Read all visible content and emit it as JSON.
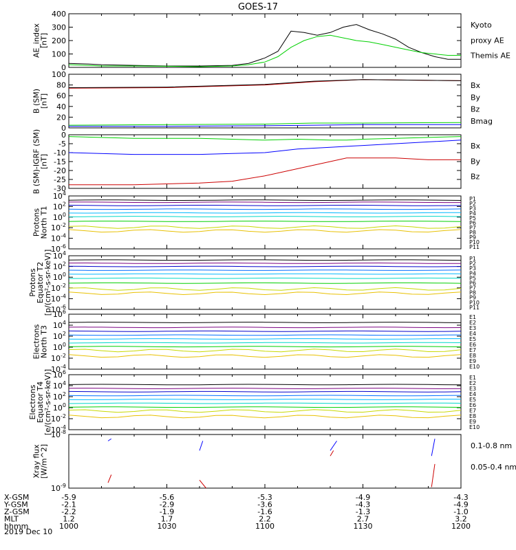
{
  "title": "GOES-17",
  "date_label": "2019 Dec 10",
  "colors": {
    "black": "#000000",
    "green": "#00d000",
    "blue": "#0000ff",
    "red": "#cc0000",
    "ch": [
      "#000000",
      "#7a0080",
      "#0000cc",
      "#0070ff",
      "#00b8ff",
      "#00d8c8",
      "#00d000",
      "#c8d800",
      "#e8c000",
      "#ff8000",
      "#cc0000"
    ]
  },
  "panels": [
    {
      "id": "ae",
      "ylabel": [
        "AE_index",
        "[nT]"
      ],
      "yticks": [
        "400",
        "300",
        "200",
        "100",
        "0"
      ],
      "legend": [
        {
          "text": "Kyoto",
          "color": "#00d000"
        },
        {
          "text": "proxy AE",
          "color": "#00d000"
        },
        {
          "text": "Themis AE",
          "color": "#000000"
        }
      ]
    },
    {
      "id": "bsm",
      "ylabel": [
        "B (SM)",
        "[nT]"
      ],
      "yticks": [
        "100",
        "80",
        "60",
        "40",
        "20",
        "0"
      ],
      "legend": [
        {
          "text": "Bx",
          "color": "#0000ff"
        },
        {
          "text": "By",
          "color": "#00d000"
        },
        {
          "text": "Bz",
          "color": "#cc0000"
        },
        {
          "text": "Bmag",
          "color": "#000000"
        }
      ]
    },
    {
      "id": "bigrf",
      "ylabel": [
        "B (SM)-IGRF (SM)",
        "[nT]"
      ],
      "yticks": [
        "0",
        "-5",
        "-10",
        "-15",
        "-20",
        "-25",
        "-30"
      ],
      "legend": [
        {
          "text": "Bx",
          "color": "#0000ff"
        },
        {
          "text": "By",
          "color": "#00d000"
        },
        {
          "text": "Bz",
          "color": "#cc0000"
        }
      ]
    },
    {
      "id": "pn",
      "ylabel": [
        "Protons",
        "North T1"
      ],
      "yticks": [
        "10^4",
        "10^2",
        "10^0",
        "10^-2",
        "10^-4",
        "10^-6"
      ],
      "legend": [
        "P1",
        "P2",
        "P3",
        "P4",
        "P5",
        "P6",
        "P7",
        "P8",
        "P9",
        "P10",
        "P11"
      ]
    },
    {
      "id": "pe",
      "ylabel": [
        "Protons",
        "Equator T2",
        "[p/(cm²-s-sr-keV)]"
      ],
      "yticks": [
        "10^4",
        "10^2",
        "10^0",
        "10^-2",
        "10^-4",
        "10^-6"
      ],
      "legend": [
        "P1",
        "P2",
        "P3",
        "P4",
        "P5",
        "P6",
        "P7",
        "P8",
        "P9",
        "P10",
        "P11"
      ]
    },
    {
      "id": "en",
      "ylabel": [
        "Electrons",
        "North T3"
      ],
      "yticks": [
        "10^6",
        "10^4",
        "10^2",
        "10^0",
        "10^-2",
        "10^-4"
      ],
      "legend": [
        "E1",
        "E2",
        "E3",
        "E4",
        "E5",
        "E6",
        "E7",
        "E8",
        "E9",
        "E10"
      ]
    },
    {
      "id": "ee",
      "ylabel": [
        "Electrons",
        "Equator T4",
        "[e/(cm²-s-sr-keV)]"
      ],
      "yticks": [
        "10^6",
        "10^4",
        "10^2",
        "10^0",
        "10^-2",
        "10^-4"
      ],
      "legend": [
        "E1",
        "E2",
        "E3",
        "E4",
        "E5",
        "E6",
        "E7",
        "E8",
        "E9",
        "E10"
      ]
    },
    {
      "id": "xray",
      "ylabel": [
        "Xray flux",
        "[W/m^2]"
      ],
      "yticks": [
        "10^-8",
        "10^-9"
      ],
      "legend": [
        {
          "text": "0.1-0.8 nm",
          "color": "#cc0000"
        },
        {
          "text": "0.05-0.4 nm",
          "color": "#0000ff"
        }
      ]
    }
  ],
  "xaxis": {
    "rows": [
      {
        "label": "X-GSM",
        "values": [
          "-5.9",
          "-5.6",
          "-5.3",
          "-4.9",
          "-4.3"
        ]
      },
      {
        "label": "Y-GSM",
        "values": [
          "-2.1",
          "-2.9",
          "-3.6",
          "-4.3",
          "-4.9"
        ]
      },
      {
        "label": "Z-GSM",
        "values": [
          "-2.2",
          "-1.9",
          "-1.6",
          "-1.3",
          "-1.0"
        ]
      },
      {
        "label": "MLT",
        "values": [
          "1.2",
          "1.7",
          "2.2",
          "2.7",
          "3.2"
        ]
      },
      {
        "label": "hhmm",
        "values": [
          "1000",
          "1030",
          "1100",
          "1130",
          "1200"
        ]
      }
    ]
  },
  "chart_data": [
    {
      "type": "line",
      "panel": "ae",
      "x": [
        1000,
        1006,
        1010,
        1020,
        1030,
        1040,
        1050,
        1055,
        1100,
        1104,
        1108,
        1112,
        1116,
        1120,
        1124,
        1128,
        1132,
        1136,
        1140,
        1144,
        1148,
        1152,
        1156,
        1200
      ],
      "series": [
        {
          "name": "Themis AE",
          "values": [
            30,
            25,
            20,
            15,
            10,
            10,
            15,
            30,
            70,
            120,
            270,
            260,
            240,
            260,
            300,
            320,
            280,
            250,
            210,
            150,
            110,
            80,
            60,
            60
          ]
        },
        {
          "name": "Kyoto proxy AE",
          "values": [
            20,
            15,
            10,
            10,
            8,
            5,
            10,
            20,
            40,
            80,
            150,
            200,
            230,
            240,
            220,
            200,
            190,
            170,
            150,
            130,
            110,
            100,
            90,
            90
          ]
        }
      ],
      "ylim": [
        0,
        400
      ]
    },
    {
      "type": "line",
      "panel": "bsm",
      "x": [
        1000,
        1030,
        1100,
        1115,
        1130,
        1200
      ],
      "series": [
        {
          "name": "Bz",
          "values": [
            74,
            75,
            80,
            86,
            90,
            88
          ]
        },
        {
          "name": "Bmag",
          "values": [
            75,
            76,
            81,
            87,
            90,
            88
          ]
        },
        {
          "name": "By",
          "values": [
            5,
            6,
            7,
            9,
            9,
            10
          ]
        },
        {
          "name": "Bx",
          "values": [
            3,
            3,
            4,
            5,
            6,
            6
          ]
        }
      ],
      "ylim": [
        0,
        100
      ]
    },
    {
      "type": "line",
      "panel": "bigrf",
      "x": [
        1000,
        1020,
        1040,
        1050,
        1100,
        1110,
        1120,
        1125,
        1130,
        1140,
        1150,
        1200
      ],
      "series": [
        {
          "name": "By",
          "values": [
            -1,
            -2,
            -2,
            -2.5,
            -3,
            -2.5,
            -3,
            -3,
            -2.5,
            -2,
            -1.5,
            -1
          ]
        },
        {
          "name": "Bx",
          "values": [
            -10,
            -11,
            -11,
            -10.5,
            -10,
            -8,
            -7,
            -6.5,
            -6,
            -5,
            -4,
            -3
          ]
        },
        {
          "name": "Bz",
          "values": [
            -28,
            -28,
            -27,
            -26,
            -23,
            -19,
            -15,
            -13,
            -13,
            -13,
            -14,
            -14
          ]
        }
      ],
      "ylim": [
        -30,
        0
      ]
    },
    {
      "type": "line",
      "panel": "pn",
      "scale": "log",
      "levels": [
        3.2,
        2.8,
        2.2,
        1.5,
        0.8,
        0.1,
        -0.8,
        -1.9,
        -2.6,
        null,
        null
      ],
      "ylim": [
        -6,
        4
      ]
    },
    {
      "type": "line",
      "panel": "pe",
      "scale": "log",
      "levels": [
        3.2,
        2.6,
        2.0,
        1.3,
        0.6,
        -0.2,
        -1.1,
        -2.2,
        -3.0,
        null,
        null
      ],
      "ylim": [
        -6,
        4
      ]
    },
    {
      "type": "line",
      "panel": "en",
      "scale": "log",
      "levels": [
        4.5,
        3.6,
        2.9,
        2.2,
        1.5,
        0.8,
        0.1,
        -0.6,
        -1.6,
        null
      ],
      "ylim": [
        -4,
        6
      ]
    },
    {
      "type": "line",
      "panel": "ee",
      "scale": "log",
      "levels": [
        4.2,
        3.5,
        2.9,
        2.2,
        1.5,
        0.8,
        0.1,
        -0.6,
        -1.6,
        null
      ],
      "ylim": [
        -4,
        6
      ]
    },
    {
      "type": "scatter",
      "panel": "xray",
      "scale": "log",
      "ylim": [
        -9,
        -8
      ]
    }
  ]
}
